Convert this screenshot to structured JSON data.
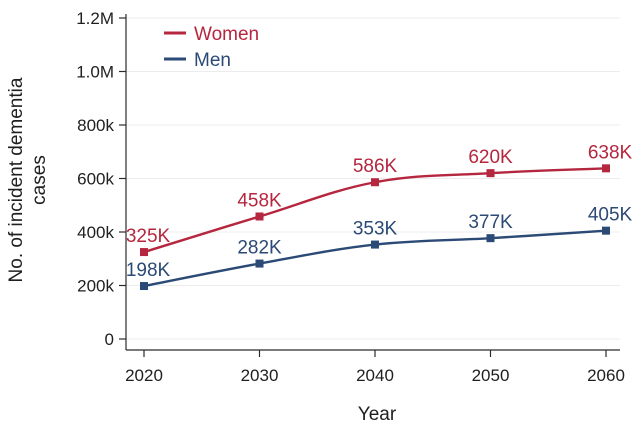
{
  "chart_data": {
    "type": "line",
    "title": "",
    "xlabel": "Year",
    "ylabel": "No. of incident dementia cases",
    "ylabel_lines": [
      "No. of incident dementia",
      "cases"
    ],
    "x": [
      2020,
      2030,
      2040,
      2050,
      2060
    ],
    "x_ticks": [
      "2020",
      "2030",
      "2040",
      "2050",
      "2060"
    ],
    "xlim": [
      2020,
      2060
    ],
    "ylim": [
      0,
      1200000
    ],
    "y_ticks": [
      {
        "value": 0,
        "label": "0"
      },
      {
        "value": 200000,
        "label": "200k"
      },
      {
        "value": 400000,
        "label": "400k"
      },
      {
        "value": 600000,
        "label": "600k"
      },
      {
        "value": 800000,
        "label": "800k"
      },
      {
        "value": 1000000,
        "label": "1.0M"
      },
      {
        "value": 1200000,
        "label": "1.2M"
      }
    ],
    "grid": "horizontal",
    "legend_position": "top-left",
    "series": [
      {
        "name": "Women",
        "color": "#b5263f",
        "values": [
          325000,
          458000,
          586000,
          620000,
          638000
        ],
        "data_labels": [
          "325K",
          "458K",
          "586K",
          "620K",
          "638K"
        ]
      },
      {
        "name": "Men",
        "color": "#2b4a75",
        "values": [
          198000,
          282000,
          353000,
          377000,
          405000
        ],
        "data_labels": [
          "198K",
          "282K",
          "353K",
          "377K",
          "405K"
        ]
      }
    ]
  }
}
